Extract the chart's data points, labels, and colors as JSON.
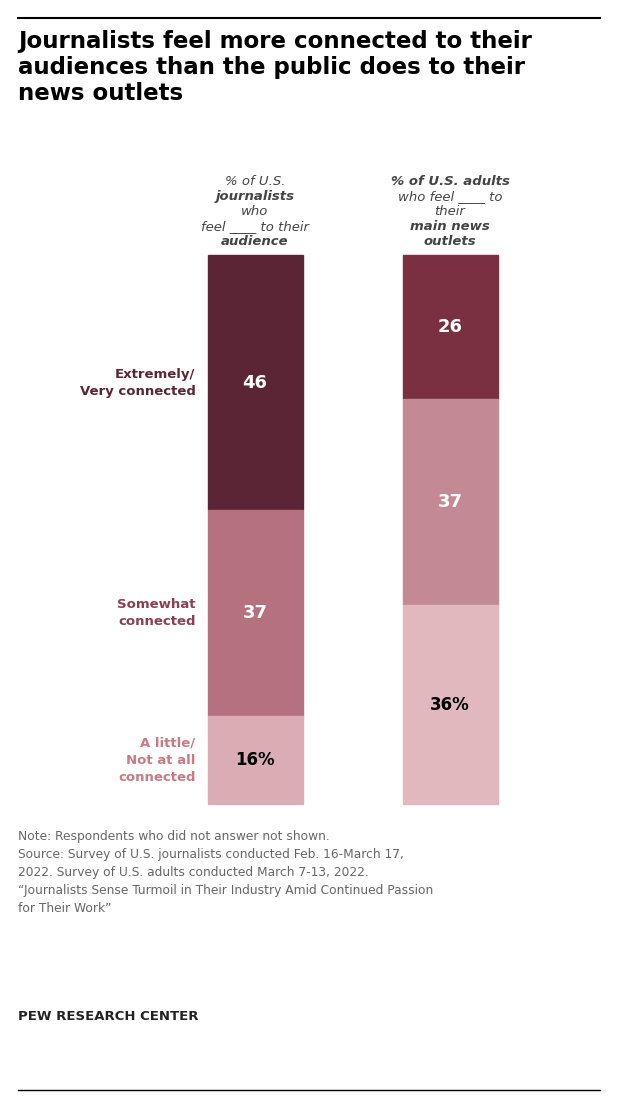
{
  "title_line1": "Journalists feel more connected to their",
  "title_line2": "audiences than the public does to their",
  "title_line3": "news outlets",
  "bar1_values": [
    46,
    37,
    16
  ],
  "bar2_values": [
    26,
    37,
    36
  ],
  "colors_bar1": [
    "#5c2535",
    "#b5727e",
    "#d9adb3"
  ],
  "colors_bar2": [
    "#7a3040",
    "#c48a94",
    "#e0b8be"
  ],
  "bar1_text_colors": [
    "white",
    "white",
    "black"
  ],
  "bar2_text_colors": [
    "white",
    "white",
    "black"
  ],
  "bar1_labels": [
    "46",
    "37",
    "16%"
  ],
  "bar2_labels": [
    "26",
    "37",
    "36%"
  ],
  "side_labels": [
    "Extremely/\nVery connected",
    "Somewhat\nconnected",
    "A little/\nNot at all\nconnected"
  ],
  "side_label_colors": [
    "#5c2535",
    "#8a4050",
    "#c87a85"
  ],
  "note": "Note: Respondents who did not answer not shown.\nSource: Survey of U.S. journalists conducted Feb. 16-March 17,\n2022. Survey of U.S. adults conducted March 7-13, 2022.\n“Journalists Sense Turmoil in Their Industry Amid Continued Passion\nfor Their Work”",
  "source_bold": "PEW RESEARCH CENTER",
  "bg_color": "#ffffff"
}
